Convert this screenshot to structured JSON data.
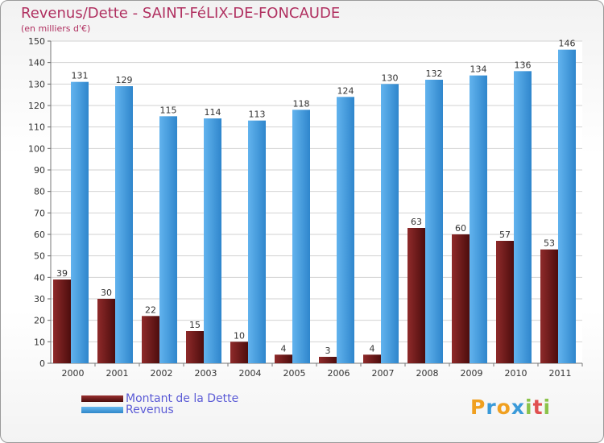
{
  "chart_data": {
    "type": "bar",
    "title": "Revenus/Dette - SAINT-FéLIX-DE-FONCAUDE",
    "subtitle": "(en milliers d'€)",
    "categories": [
      "2000",
      "2001",
      "2002",
      "2003",
      "2004",
      "2005",
      "2006",
      "2007",
      "2008",
      "2009",
      "2010",
      "2011"
    ],
    "series": [
      {
        "name": "Montant de la Dette",
        "color": "#7a1c1c",
        "values": [
          39,
          30,
          22,
          15,
          10,
          4,
          3,
          4,
          63,
          60,
          57,
          53
        ]
      },
      {
        "name": "Revenus",
        "color": "#4aa3e8",
        "values": [
          131,
          129,
          115,
          114,
          113,
          118,
          124,
          130,
          132,
          134,
          136,
          146
        ]
      }
    ],
    "ylim": [
      0,
      150
    ],
    "yticks": [
      0,
      10,
      20,
      30,
      40,
      50,
      60,
      70,
      80,
      90,
      100,
      110,
      120,
      130,
      140,
      150
    ],
    "grid": true,
    "legend_position": "bottom-left"
  },
  "brand": {
    "letters": [
      "P",
      "r",
      "o",
      "x",
      "i",
      "t",
      "i"
    ],
    "colors": [
      "#f0a020",
      "#3a9ad9",
      "#f0a020",
      "#3a9ad9",
      "#8bc34a",
      "#e05050",
      "#8bc34a"
    ]
  }
}
